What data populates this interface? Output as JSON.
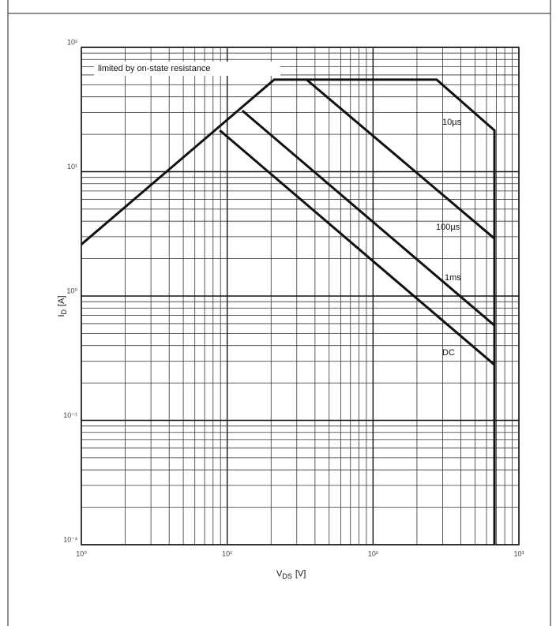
{
  "chart_data": {
    "type": "line",
    "annotation": "limited by on-state resistance",
    "x_label": {
      "main": "V",
      "sub": "DS",
      "unit": "[V]"
    },
    "y_label": {
      "main": "I",
      "sub": "D",
      "unit": "[A]"
    },
    "log_x": true,
    "log_y": true,
    "grid": true,
    "minor_grid": true,
    "xlim": [
      1,
      1000
    ],
    "ylim": [
      0.01,
      100
    ],
    "xticks": [
      {
        "value": 1,
        "label": "10⁰"
      },
      {
        "value": 10,
        "label": "10¹"
      },
      {
        "value": 100,
        "label": "10²"
      },
      {
        "value": 1000,
        "label": "10³"
      }
    ],
    "yticks": [
      {
        "value": 0.01,
        "label": "10⁻²"
      },
      {
        "value": 0.1,
        "label": "10⁻¹"
      },
      {
        "value": 1,
        "label": "10⁰"
      },
      {
        "value": 10,
        "label": "10¹"
      },
      {
        "value": 100,
        "label": "10²"
      }
    ],
    "series": [
      {
        "name": "10µs",
        "color": "#111111",
        "x": [
          1,
          21,
          273,
          680,
          680
        ],
        "values": [
          2.6,
          55,
          55,
          21.5,
          0.01
        ]
      },
      {
        "name": "100µs",
        "color": "#111111",
        "x": [
          35,
          680
        ],
        "values": [
          55,
          2.9
        ]
      },
      {
        "name": "1ms",
        "color": "#111111",
        "x": [
          12.7,
          680
        ],
        "values": [
          31,
          0.58
        ]
      },
      {
        "name": "DC",
        "color": "#111111",
        "x": [
          8.9,
          680
        ],
        "values": [
          21.5,
          0.28
        ]
      }
    ]
  }
}
